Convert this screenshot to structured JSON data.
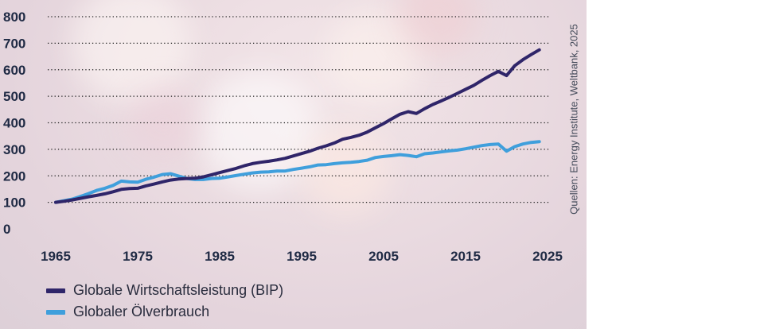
{
  "source_note": "Quellen: Energy Institute, Weltbank, 2025",
  "colors": {
    "gdp": "#2f2569",
    "oil": "#3f9fdc",
    "grid": "#222222",
    "text": "#1f2a44"
  },
  "chart_data": {
    "type": "line",
    "title": "",
    "xlabel": "",
    "ylabel": "",
    "x_ticks": [
      "1965",
      "1975",
      "1985",
      "1995",
      "2005",
      "2015",
      "2025"
    ],
    "y_ticks": [
      "0",
      "100",
      "200",
      "300",
      "400",
      "500",
      "600",
      "700",
      "800"
    ],
    "xlim": [
      1965,
      2025
    ],
    "ylim": [
      0,
      800
    ],
    "grid": "horizontal dotted",
    "legend_position": "bottom-left",
    "series": [
      {
        "name": "Globale Wirtschaftsleistung (BIP)",
        "color": "#2f2569",
        "x": [
          1965,
          1966,
          1967,
          1968,
          1969,
          1970,
          1971,
          1972,
          1973,
          1974,
          1975,
          1976,
          1977,
          1978,
          1979,
          1980,
          1981,
          1982,
          1983,
          1984,
          1985,
          1986,
          1987,
          1988,
          1989,
          1990,
          1991,
          1992,
          1993,
          1994,
          1995,
          1996,
          1997,
          1998,
          1999,
          2000,
          2001,
          2002,
          2003,
          2004,
          2005,
          2006,
          2007,
          2008,
          2009,
          2010,
          2011,
          2012,
          2013,
          2014,
          2015,
          2016,
          2017,
          2018,
          2019,
          2020,
          2021,
          2022,
          2023,
          2024
        ],
        "values": [
          100,
          104,
          109,
          115,
          121,
          126,
          132,
          140,
          149,
          152,
          153,
          162,
          169,
          177,
          184,
          188,
          190,
          191,
          196,
          204,
          212,
          220,
          228,
          238,
          246,
          251,
          255,
          260,
          266,
          275,
          284,
          293,
          304,
          313,
          324,
          338,
          345,
          353,
          365,
          381,
          397,
          415,
          432,
          442,
          435,
          453,
          469,
          482,
          496,
          511,
          526,
          541,
          560,
          578,
          594,
          578,
          615,
          638,
          657,
          675
        ]
      },
      {
        "name": "Globaler Ölverbrauch",
        "color": "#3f9fdc",
        "x": [
          1965,
          1966,
          1967,
          1968,
          1969,
          1970,
          1971,
          1972,
          1973,
          1974,
          1975,
          1976,
          1977,
          1978,
          1979,
          1980,
          1981,
          1982,
          1983,
          1984,
          1985,
          1986,
          1987,
          1988,
          1989,
          1990,
          1991,
          1992,
          1993,
          1994,
          1995,
          1996,
          1997,
          1998,
          1999,
          2000,
          2001,
          2002,
          2003,
          2004,
          2005,
          2006,
          2007,
          2008,
          2009,
          2010,
          2011,
          2012,
          2013,
          2014,
          2015,
          2016,
          2017,
          2018,
          2019,
          2020,
          2021,
          2022,
          2023,
          2024
        ],
        "values": [
          100,
          106,
          112,
          122,
          133,
          145,
          153,
          164,
          180,
          177,
          176,
          187,
          195,
          205,
          208,
          199,
          190,
          186,
          186,
          190,
          191,
          196,
          201,
          206,
          211,
          214,
          215,
          218,
          218,
          224,
          229,
          234,
          241,
          242,
          246,
          249,
          251,
          254,
          259,
          269,
          273,
          276,
          280,
          277,
          272,
          283,
          286,
          290,
          294,
          297,
          302,
          308,
          314,
          318,
          320,
          293,
          310,
          320,
          326,
          329
        ]
      }
    ]
  }
}
